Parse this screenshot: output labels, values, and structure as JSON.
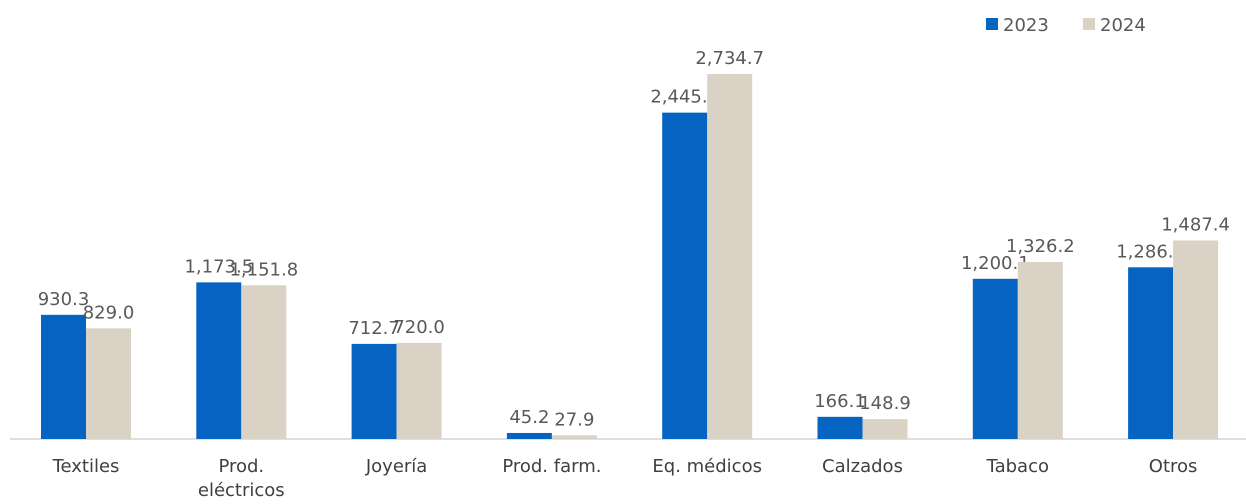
{
  "chart_data": {
    "type": "bar",
    "categories": [
      "Textiles",
      "Prod. eléctricos",
      "Joyería",
      "Prod. farm.",
      "Eq. médicos",
      "Calzados",
      "Tabaco",
      "Otros"
    ],
    "series": [
      {
        "name": "2023",
        "color": "#0563c1",
        "values": [
          930.3,
          1173.5,
          712.7,
          45.2,
          2445.2,
          166.1,
          1200.1,
          1286.3
        ],
        "value_labels": [
          "930.3",
          "1,173.5",
          "712.7",
          "45.2",
          "2,445.2",
          "166.1",
          "1,200.1",
          "1,286.3"
        ]
      },
      {
        "name": "2024",
        "color": "#d9d2c5",
        "values": [
          829.0,
          1151.8,
          720.0,
          27.9,
          2734.7,
          148.9,
          1326.2,
          1487.4
        ],
        "value_labels": [
          "829.0",
          "1,151.8",
          "720.0",
          "27.9",
          "2,734.7",
          "148.9",
          "1,326.2",
          "1,487.4"
        ]
      }
    ],
    "legend": "top-right"
  }
}
